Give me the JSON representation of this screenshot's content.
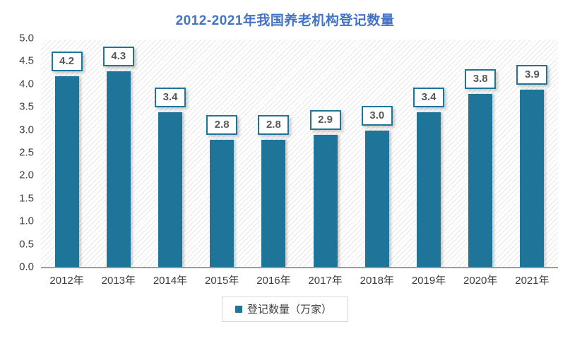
{
  "title": "2012-2021年我国养老机构登记数量",
  "legend": {
    "label": "登记数量（万家）"
  },
  "colors": {
    "title_text": "#4472c4",
    "bar_fill": "#1f7599",
    "value_label_text": "#595959",
    "axis_text": "#404040",
    "axis_line": "#9d9d9d",
    "legend_border": "#d7d7d7",
    "hatch_line": "#e7e7e7"
  },
  "chart_data": {
    "type": "bar",
    "title": "2012-2021年我国养老机构登记数量",
    "categories": [
      "2012年",
      "2013年",
      "2014年",
      "2015年",
      "2016年",
      "2017年",
      "2018年",
      "2019年",
      "2020年",
      "2021年"
    ],
    "values": [
      4.2,
      4.3,
      3.4,
      2.8,
      2.8,
      2.9,
      3.0,
      3.4,
      3.8,
      3.9
    ],
    "series_name": "登记数量（万家）",
    "xlabel": "",
    "ylabel": "",
    "ylim": [
      0,
      5
    ],
    "y_ticks": [
      "0.0",
      "0.5",
      "1.0",
      "1.5",
      "2.0",
      "2.5",
      "3.0",
      "3.5",
      "4.0",
      "4.5",
      "5.0"
    ],
    "grid": false,
    "legend_position": "bottom",
    "background_pattern": "diagonal-hatch",
    "data_labels": [
      "4.2",
      "4.3",
      "3.4",
      "2.8",
      "2.8",
      "2.9",
      "3.0",
      "3.4",
      "3.8",
      "3.9"
    ]
  }
}
